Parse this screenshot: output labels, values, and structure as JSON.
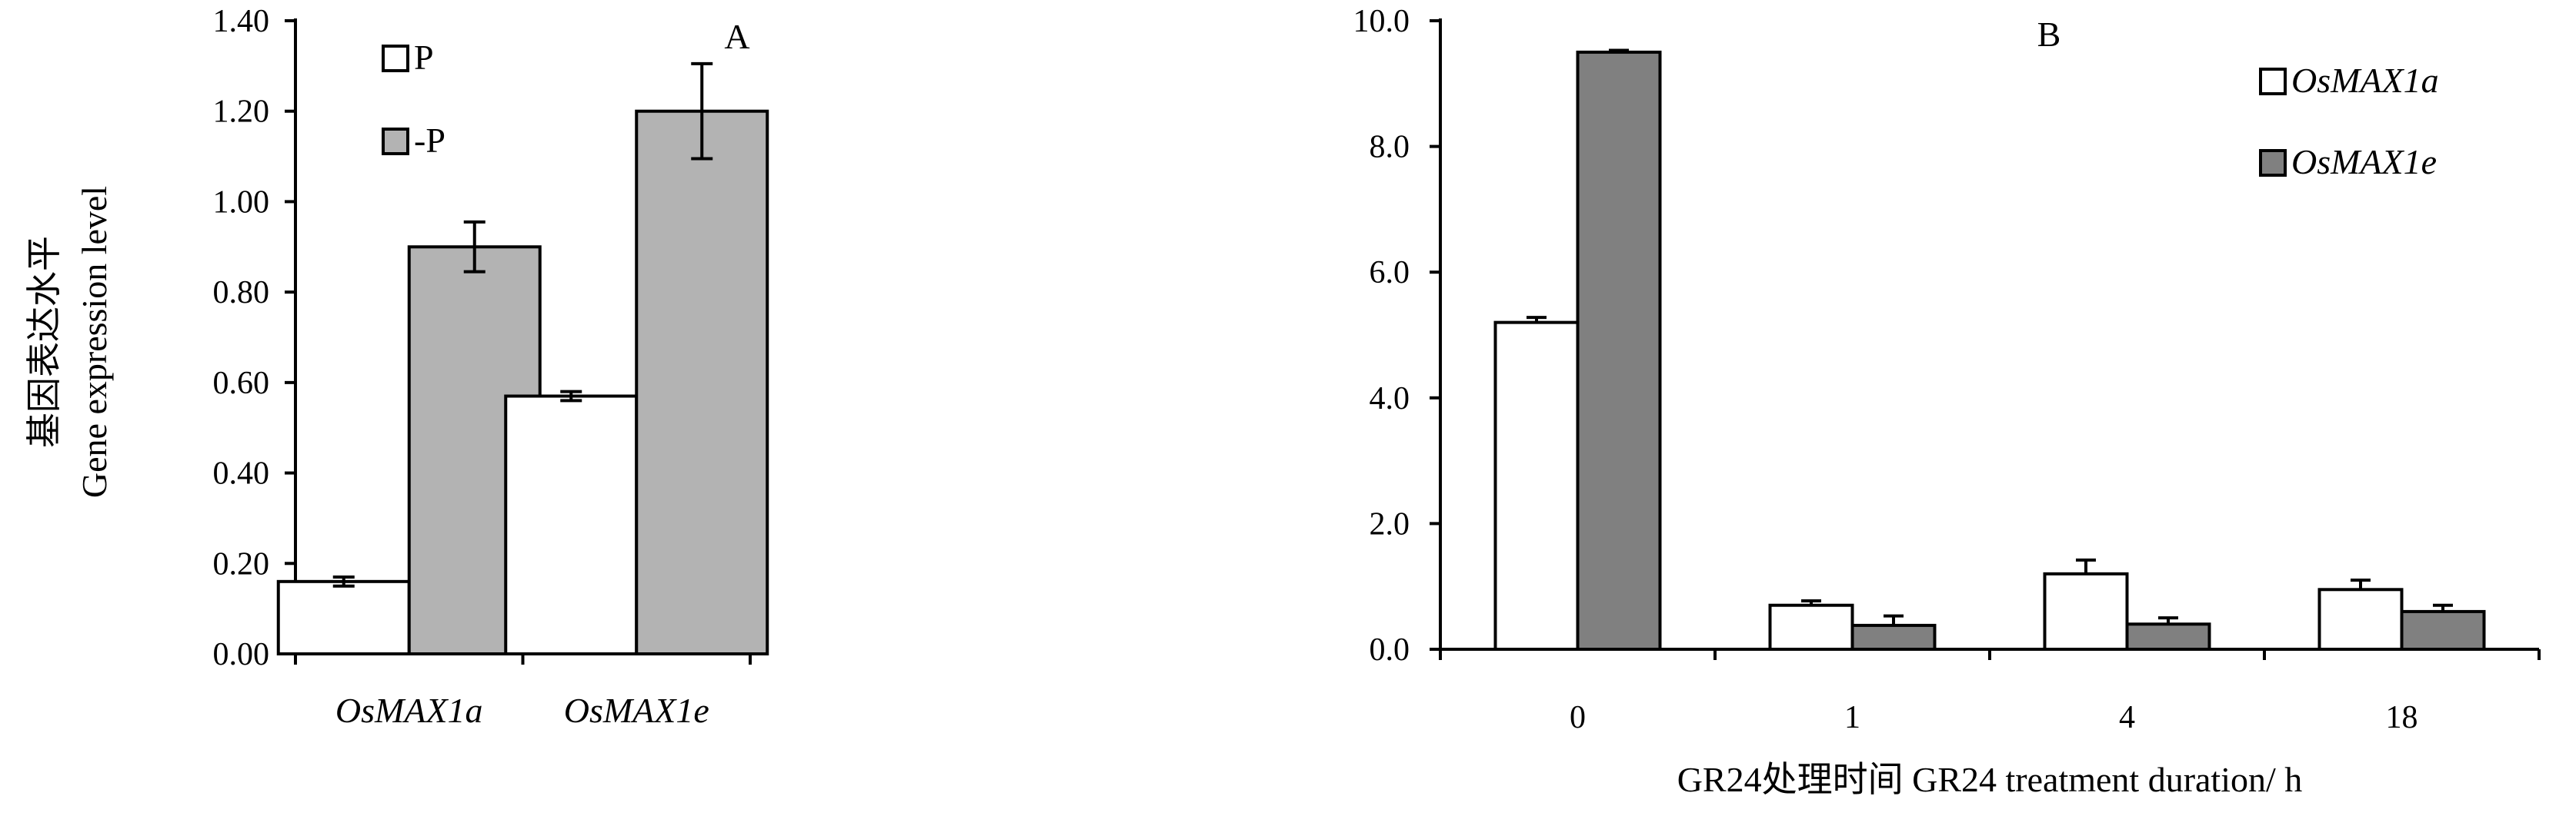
{
  "chart_data": [
    {
      "type": "bar",
      "panel_label": "A",
      "categories": [
        "OsMAX1a",
        "OsMAX1e"
      ],
      "series": [
        {
          "name": "P",
          "values": [
            0.16,
            0.57
          ],
          "errors": [
            0.01,
            0.01
          ],
          "color": "#ffffff"
        },
        {
          "name": "-P",
          "values": [
            0.9,
            1.2
          ],
          "errors": [
            0.055,
            0.105
          ],
          "color": "#b3b3b3"
        }
      ],
      "ylabel_cn": "基因表达水平",
      "ylabel_en": "Gene expression level",
      "ylim": [
        0,
        1.4
      ],
      "yticks": [
        "0.00",
        "0.20",
        "0.40",
        "0.60",
        "0.80",
        "1.00",
        "1.20",
        "1.40"
      ],
      "legend_position": "top-left"
    },
    {
      "type": "bar",
      "panel_label": "B",
      "categories": [
        "0",
        "1",
        "4",
        "18"
      ],
      "series": [
        {
          "name": "OsMAX1a",
          "values": [
            5.2,
            0.7,
            1.2,
            0.95
          ],
          "errors": [
            0.08,
            0.07,
            0.22,
            0.15
          ],
          "color": "#ffffff"
        },
        {
          "name": "OsMAX1e",
          "values": [
            9.5,
            0.38,
            0.4,
            0.6
          ],
          "errors": [
            0.03,
            0.15,
            0.1,
            0.1
          ],
          "color": "#808080"
        }
      ],
      "xlabel": "GR24处理时间  GR24 treatment duration/ h",
      "ylim": [
        0,
        10
      ],
      "yticks": [
        "0.0",
        "2.0",
        "4.0",
        "6.0",
        "8.0",
        "10.0"
      ],
      "legend_position": "top-right"
    }
  ]
}
